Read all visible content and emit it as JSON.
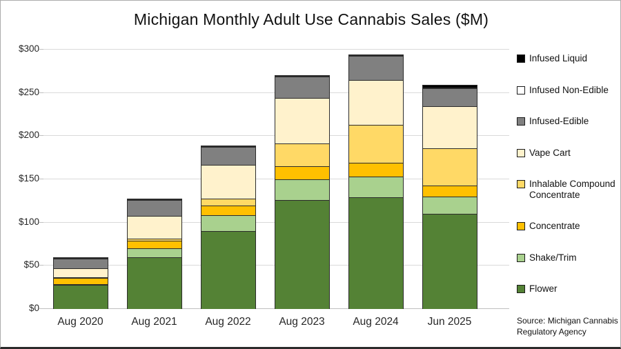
{
  "title": "Michigan Monthly Adult Use Cannabis Sales ($M)",
  "source_note": "Source: Michigan Cannabis Regulatory Agency",
  "y_axis": {
    "ticks": [
      "$0",
      "$50",
      "$100",
      "$150",
      "$200",
      "$250",
      "$300"
    ]
  },
  "legend": {
    "items": [
      {
        "label": "Infused Liquid",
        "color": "#000000"
      },
      {
        "label": "Infused Non-Edible",
        "color": "#FFFFFF"
      },
      {
        "label": "Infused-Edible",
        "color": "#808080"
      },
      {
        "label": "Vape Cart",
        "color": "#FFF2CC"
      },
      {
        "label": "Inhalable Compound Concentrate",
        "color": "#FFD966"
      },
      {
        "label": "Concentrate",
        "color": "#FFC000"
      },
      {
        "label": "Shake/Trim",
        "color": "#A9D18E"
      },
      {
        "label": "Flower",
        "color": "#548235"
      }
    ]
  },
  "chart_data": {
    "type": "bar",
    "stacked": true,
    "title": "Michigan Monthly Adult Use Cannabis Sales ($M)",
    "categories": [
      "Aug 2020",
      "Aug 2021",
      "Aug 2022",
      "Aug 2023",
      "Aug 2024",
      "Jun 2025"
    ],
    "series": [
      {
        "name": "Flower",
        "color": "#548235",
        "values": [
          28,
          60,
          90,
          126,
          129,
          110
        ]
      },
      {
        "name": "Shake/Trim",
        "color": "#A9D18E",
        "values": [
          1,
          10,
          18,
          24,
          24,
          20
        ]
      },
      {
        "name": "Concentrate",
        "color": "#FFC000",
        "values": [
          7,
          9,
          11,
          15,
          16,
          13
        ]
      },
      {
        "name": "Inhalable Compound Concentrate",
        "color": "#FFD966",
        "values": [
          1,
          2,
          8,
          26,
          44,
          43
        ]
      },
      {
        "name": "Vape Cart",
        "color": "#FFF2CC",
        "values": [
          10,
          26,
          39,
          53,
          52,
          49
        ]
      },
      {
        "name": "Infused-Edible",
        "color": "#808080",
        "values": [
          11,
          18,
          21,
          25,
          28,
          21
        ]
      },
      {
        "name": "Infused Non-Edible",
        "color": "#FFFFFF",
        "values": [
          0.5,
          0.5,
          1,
          1,
          1,
          1
        ]
      },
      {
        "name": "Infused Liquid",
        "color": "#000000",
        "values": [
          0.5,
          0.5,
          1,
          1,
          1,
          3
        ]
      }
    ],
    "estimated_totals": [
      59,
      126,
      189,
      271,
      295,
      260
    ],
    "ylim": [
      0,
      300
    ],
    "ytick_step": 50,
    "grid": true,
    "legend_position": "right"
  }
}
